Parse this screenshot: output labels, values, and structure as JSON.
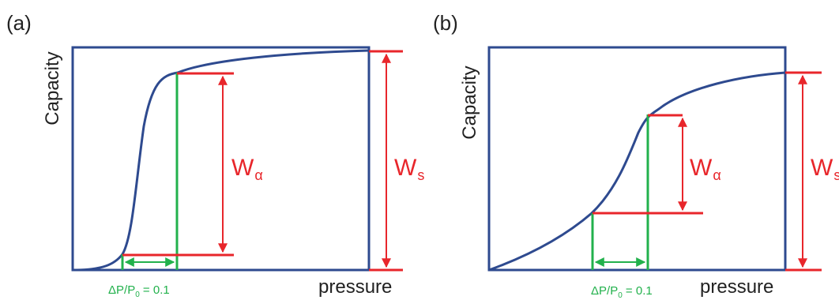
{
  "colors": {
    "frame": "#2e4a8f",
    "curve": "#2e4a8f",
    "measure_red": "#e8262b",
    "measure_green": "#22b14c",
    "text": "#222222"
  },
  "panels": [
    {
      "label": "(a)",
      "ylabel": "Capacity",
      "xlabel": "pressure",
      "w_alpha": {
        "main": "W",
        "sub": "α"
      },
      "w_s": {
        "main": "W",
        "sub": "s"
      },
      "dp": {
        "prefix": "ΔP/P",
        "sub": "0",
        "suffix": " = 0.1"
      }
    },
    {
      "label": "(b)",
      "ylabel": "Capacity",
      "xlabel": "pressure",
      "w_alpha": {
        "main": "W",
        "sub": "α"
      },
      "w_s": {
        "main": "W",
        "sub": "s"
      },
      "dp": {
        "prefix": "ΔP/P",
        "sub": "0",
        "suffix": " = 0.1"
      }
    }
  ]
}
